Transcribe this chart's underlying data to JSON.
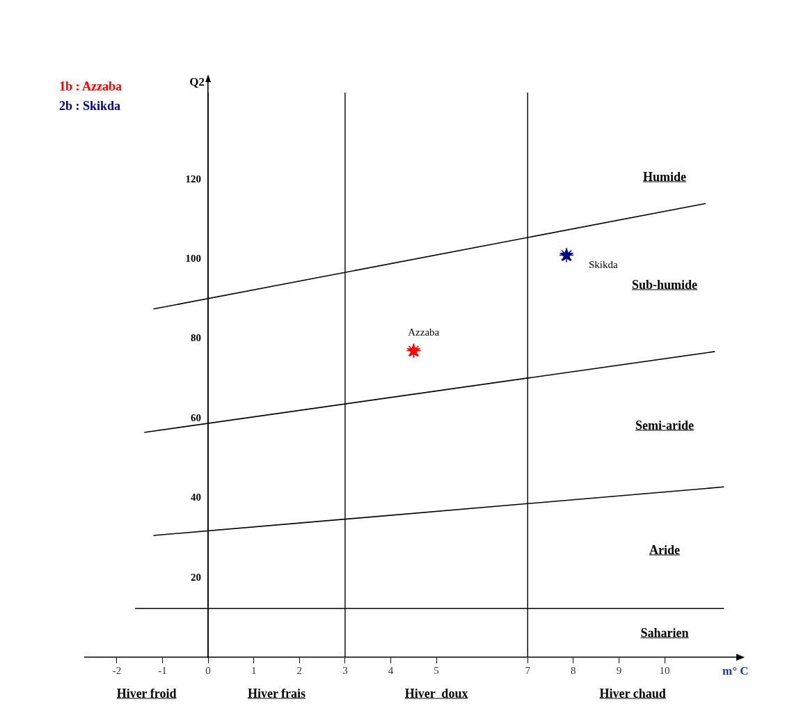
{
  "chart_data": {
    "type": "scatter",
    "xlabel": "m° C",
    "ylabel": "Q2",
    "xlim": [
      -2.7,
      11.6
    ],
    "ylim": [
      0,
      145
    ],
    "xticks": [
      -2,
      -1,
      0,
      1,
      2,
      3,
      4,
      5,
      7,
      8,
      9,
      10
    ],
    "yticks": [
      20,
      40,
      60,
      80,
      100,
      120
    ],
    "grid": false,
    "legend": "top left",
    "series": [
      {
        "name": "1b : Azzaba",
        "color": "#ff0000",
        "marker": "star",
        "x": [
          4.5
        ],
        "values": [
          77
        ]
      },
      {
        "name": "2b : Skikda",
        "color": "#000080",
        "marker": "star",
        "x": [
          7.85
        ],
        "values": [
          101
        ]
      },
      {
        "type": "line",
        "color": "#000000",
        "x": [
          -1.2,
          10.9
        ],
        "values": [
          87.5,
          114
        ]
      },
      {
        "type": "line",
        "color": "#000000",
        "x": [
          -1.4,
          11.1
        ],
        "values": [
          56.5,
          76.8
        ]
      },
      {
        "type": "line",
        "color": "#000000",
        "x": [
          -1.2,
          11.3
        ],
        "values": [
          30.6,
          42.8
        ]
      },
      {
        "type": "line",
        "color": "#000000",
        "x": [
          -1.6,
          11.3
        ],
        "values": [
          12.3,
          12.3
        ]
      }
    ],
    "ref_lines": [
      {
        "axis": "x",
        "value": 0,
        "color": "#000000"
      },
      {
        "axis": "x",
        "value": 3,
        "color": "#000000"
      },
      {
        "axis": "x",
        "value": 7,
        "color": "#000000"
      }
    ],
    "annotations": [
      {
        "text": "Azzaba",
        "x": 4.5,
        "y": 77
      },
      {
        "text": "Skikda",
        "x": 7.85,
        "y": 101
      },
      "Humide",
      "Sub-humide",
      "Semi-aride",
      "Aride",
      "Saharien",
      "Hiver froid",
      "Hiver frais",
      "Hiver  doux",
      "Hiver chaud"
    ]
  }
}
